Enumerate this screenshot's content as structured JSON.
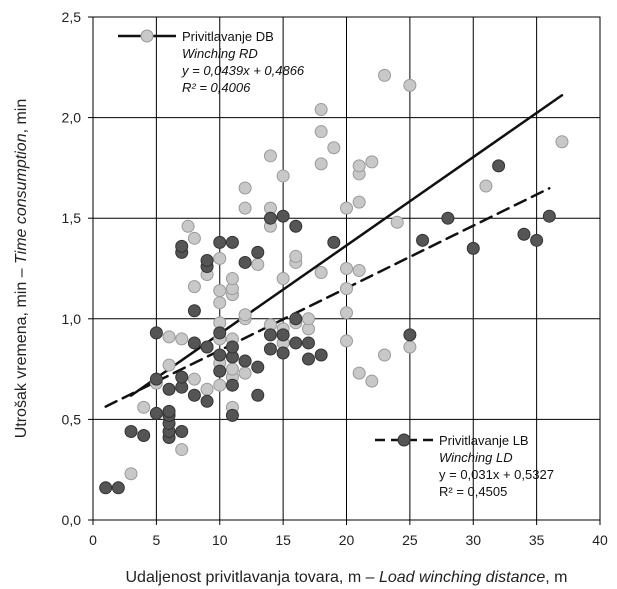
{
  "chart_data": {
    "type": "scatter",
    "xlabel": "Udaljenost privitlavanja tovara, m – Load winching distance, m",
    "xlabel_plain": "Udaljenost privitlavanja tovara, m – ",
    "xlabel_italic": "Load winching distance",
    "xlabel_tail": ", m",
    "ylabel": "Utrošak vremena, min – Time consumption, min",
    "ylabel_plain": "Utrošak vremena, min – ",
    "ylabel_italic": "Time consumption",
    "ylabel_tail": ", min",
    "xlim": [
      0,
      40
    ],
    "ylim": [
      0,
      2.5
    ],
    "x_ticks": [
      "0",
      "5",
      "10",
      "15",
      "20",
      "25",
      "30",
      "35",
      "40"
    ],
    "y_ticks": [
      "0,0",
      "0,5",
      "1,0",
      "1,5",
      "2,0",
      "2,5"
    ],
    "grid": true,
    "legend_placement": "top-left and bottom-right",
    "series": [
      {
        "name": "Privitlavanje DB",
        "subtitle": "Winching RD",
        "equation": "y = 0,0439x + 0,4866",
        "r2": "R² = 0,4006",
        "marker_color": "#c8c8c8",
        "line_color": "#111111",
        "line_style": "solid",
        "trend": {
          "slope": 0.0439,
          "intercept": 0.4866,
          "x_range": [
            3,
            37
          ]
        },
        "points": [
          [
            3,
            0.23
          ],
          [
            4,
            0.56
          ],
          [
            5,
            0.68
          ],
          [
            6,
            0.77
          ],
          [
            6,
            0.91
          ],
          [
            7,
            0.35
          ],
          [
            7,
            0.9
          ],
          [
            7.5,
            1.46
          ],
          [
            8,
            1.16
          ],
          [
            8,
            1.4
          ],
          [
            8,
            0.7
          ],
          [
            9,
            0.65
          ],
          [
            9,
            0.86
          ],
          [
            9,
            1.22
          ],
          [
            10,
            0.67
          ],
          [
            10,
            0.78
          ],
          [
            10,
            0.9
          ],
          [
            10,
            0.98
          ],
          [
            10,
            1.08
          ],
          [
            10,
            1.14
          ],
          [
            10,
            1.3
          ],
          [
            11,
            0.56
          ],
          [
            11,
            0.71
          ],
          [
            11,
            0.75
          ],
          [
            11,
            0.9
          ],
          [
            11,
            1.12
          ],
          [
            11,
            1.15
          ],
          [
            11,
            1.2
          ],
          [
            12,
            0.73
          ],
          [
            12,
            0.79
          ],
          [
            12,
            1.0
          ],
          [
            12,
            1.02
          ],
          [
            12,
            1.55
          ],
          [
            12,
            1.65
          ],
          [
            13,
            1.27
          ],
          [
            14,
            0.97
          ],
          [
            14,
            1.46
          ],
          [
            14,
            1.55
          ],
          [
            14,
            1.81
          ],
          [
            15,
            0.88
          ],
          [
            15,
            0.95
          ],
          [
            15,
            1.2
          ],
          [
            15,
            1.71
          ],
          [
            16,
            0.98
          ],
          [
            16,
            1.28
          ],
          [
            16,
            1.31
          ],
          [
            17,
            0.95
          ],
          [
            17,
            1.0
          ],
          [
            18,
            1.23
          ],
          [
            18,
            1.77
          ],
          [
            18,
            1.93
          ],
          [
            18,
            2.04
          ],
          [
            19,
            1.85
          ],
          [
            20,
            0.89
          ],
          [
            20,
            1.03
          ],
          [
            20,
            1.15
          ],
          [
            20,
            1.25
          ],
          [
            20,
            1.55
          ],
          [
            21,
            0.73
          ],
          [
            21,
            1.24
          ],
          [
            21,
            1.58
          ],
          [
            21,
            1.72
          ],
          [
            21,
            1.76
          ],
          [
            22,
            0.69
          ],
          [
            22,
            1.78
          ],
          [
            23,
            0.82
          ],
          [
            23,
            2.21
          ],
          [
            24,
            1.48
          ],
          [
            25,
            0.86
          ],
          [
            25,
            2.16
          ],
          [
            31,
            1.66
          ],
          [
            37,
            1.88
          ]
        ]
      },
      {
        "name": "Privitlavanje LB",
        "subtitle": "Winching LD",
        "equation": "y = 0,031x + 0,5327",
        "r2": "R² = 0,4505",
        "marker_color": "#555555",
        "line_color": "#111111",
        "line_style": "dashed",
        "trend": {
          "slope": 0.031,
          "intercept": 0.5327,
          "x_range": [
            1,
            36
          ]
        },
        "points": [
          [
            1,
            0.16
          ],
          [
            2,
            0.16
          ],
          [
            3,
            0.44
          ],
          [
            4,
            0.42
          ],
          [
            5,
            0.53
          ],
          [
            5,
            0.7
          ],
          [
            5,
            0.93
          ],
          [
            6,
            0.41
          ],
          [
            6,
            0.44
          ],
          [
            6,
            0.48
          ],
          [
            6,
            0.52
          ],
          [
            6,
            0.54
          ],
          [
            6,
            0.65
          ],
          [
            7,
            0.44
          ],
          [
            7,
            0.66
          ],
          [
            7,
            0.71
          ],
          [
            7,
            1.33
          ],
          [
            7,
            1.36
          ],
          [
            8,
            0.62
          ],
          [
            8,
            0.88
          ],
          [
            8,
            1.04
          ],
          [
            9,
            0.59
          ],
          [
            9,
            0.86
          ],
          [
            9,
            1.26
          ],
          [
            9,
            1.29
          ],
          [
            10,
            0.74
          ],
          [
            10,
            0.82
          ],
          [
            10,
            0.93
          ],
          [
            10,
            1.38
          ],
          [
            11,
            0.52
          ],
          [
            11,
            0.67
          ],
          [
            11,
            0.81
          ],
          [
            11,
            0.86
          ],
          [
            11,
            1.38
          ],
          [
            12,
            0.79
          ],
          [
            12,
            1.28
          ],
          [
            13,
            0.62
          ],
          [
            13,
            0.76
          ],
          [
            13,
            1.33
          ],
          [
            14,
            0.85
          ],
          [
            14,
            0.92
          ],
          [
            14,
            1.5
          ],
          [
            15,
            0.83
          ],
          [
            15,
            0.92
          ],
          [
            15,
            1.51
          ],
          [
            16,
            0.88
          ],
          [
            16,
            1.0
          ],
          [
            16,
            1.46
          ],
          [
            17,
            0.8
          ],
          [
            17,
            0.88
          ],
          [
            18,
            0.82
          ],
          [
            19,
            1.38
          ],
          [
            25,
            0.92
          ],
          [
            26,
            1.39
          ],
          [
            28,
            1.5
          ],
          [
            30,
            1.35
          ],
          [
            32,
            1.76
          ],
          [
            34,
            1.42
          ],
          [
            35,
            1.39
          ],
          [
            36,
            1.51
          ]
        ]
      }
    ]
  }
}
